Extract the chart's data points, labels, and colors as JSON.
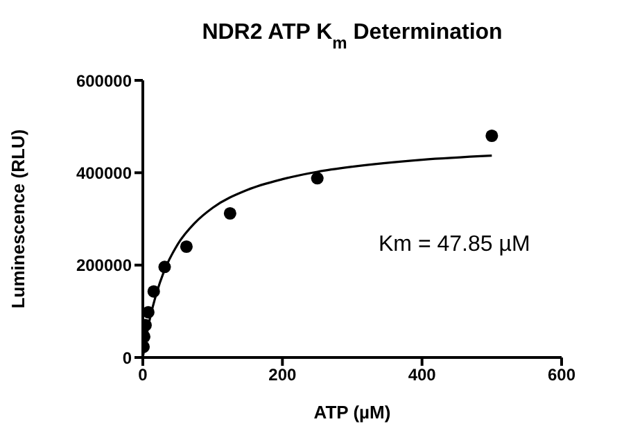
{
  "chart_data": {
    "type": "scatter",
    "title": "NDR2 ATP K$_{m}$ Determination",
    "xlabel": "ATP (µM)",
    "ylabel": "Luminescence (RLU)",
    "annotations": [
      "Km = 47.85 µM"
    ],
    "series": [
      {
        "color": "#000000",
        "marker": "circle",
        "x": [
          0.98,
          1.95,
          3.9,
          7.8,
          15.6,
          31.25,
          62.5,
          125,
          250,
          500
        ],
        "values": [
          23000,
          45000,
          70000,
          98000,
          143000,
          196000,
          240000,
          312000,
          388000,
          480000
        ]
      },
      {
        "type": "line",
        "color": "#000000",
        "marker": "none",
        "line_style": "solid",
        "x": [
          0,
          5,
          10,
          20,
          30,
          50,
          75,
          100,
          150,
          200,
          250,
          300,
          400,
          500
        ],
        "values": [
          0,
          45000,
          83000,
          141000,
          185000,
          245000,
          292000,
          324000,
          363000,
          386000,
          402000,
          413000,
          428000,
          437000
        ]
      }
    ],
    "xlim": [
      0,
      600
    ],
    "xticks": [
      0,
      200,
      400,
      600
    ],
    "ylim": [
      0,
      600000
    ],
    "yticks": [
      0,
      200000,
      400000,
      600000
    ],
    "grid": false
  }
}
